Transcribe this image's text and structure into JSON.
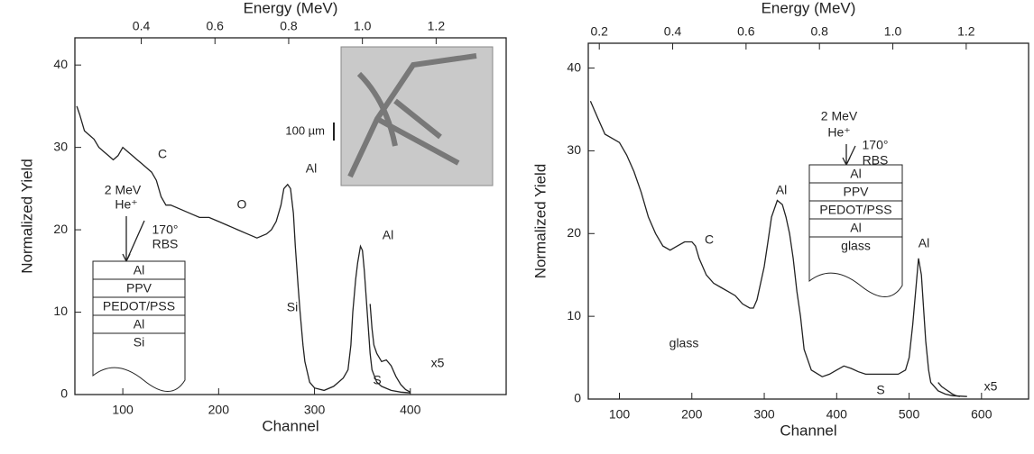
{
  "chart_data": [
    {
      "type": "line",
      "x_label": "Channel",
      "y_label": "Normalized Yield",
      "x2_label": "Energy (MeV)",
      "xlim": [
        50,
        500
      ],
      "xticks": [
        100,
        200,
        300,
        400
      ],
      "ylim": [
        0,
        43.3
      ],
      "yticks": [
        0,
        10,
        20,
        30,
        40
      ],
      "x2lim": [
        0.22,
        1.39
      ],
      "x2ticks": [
        0.4,
        0.6,
        0.8,
        {
          "value": 1,
          "label": "1.0"
        },
        1.2
      ],
      "series": [
        {
          "color": "#222",
          "x": [
            52,
            55,
            60,
            65,
            70,
            75,
            80,
            85,
            90,
            95,
            100,
            105,
            110,
            115,
            120,
            125,
            130,
            135,
            140,
            145,
            150,
            160,
            170,
            180,
            190,
            200,
            210,
            220,
            230,
            240,
            250,
            255,
            260,
            265,
            268,
            272,
            275,
            278,
            280,
            283,
            285,
            288,
            290,
            295,
            300,
            310,
            320,
            330,
            335,
            338,
            340,
            343,
            345,
            348,
            350,
            352,
            355,
            358,
            360,
            365,
            370,
            380,
            390,
            400
          ],
          "values": [
            35,
            34,
            32,
            31.5,
            31,
            30,
            29.5,
            29,
            28.5,
            29,
            30,
            29.5,
            29,
            28.5,
            28,
            27.5,
            27,
            26,
            24,
            23,
            23,
            22.5,
            22,
            21.5,
            21.5,
            21,
            20.5,
            20,
            19.5,
            19,
            19.5,
            20,
            21,
            23,
            25,
            25.5,
            25,
            22,
            18,
            13,
            10,
            6,
            4,
            1.5,
            0.8,
            0.5,
            1,
            2,
            3,
            6,
            10,
            14,
            16,
            18,
            17.5,
            15,
            10,
            5,
            3,
            1.5,
            1,
            0.5,
            0.3,
            0.2
          ]
        },
        {
          "color": "#222",
          "x": [
            358,
            360,
            362,
            365,
            370,
            375,
            380,
            385,
            390,
            395,
            400
          ],
          "values": [
            11,
            8,
            6,
            5,
            4,
            4.2,
            3.5,
            2.2,
            1.2,
            0.6,
            0.3
          ]
        }
      ],
      "annotations": [
        "C",
        "O",
        "Al",
        "Al",
        "Si",
        "S",
        "x5"
      ],
      "beam": [
        "2 MeV",
        "He⁺",
        "170°",
        "RBS"
      ],
      "layers": [
        "Al",
        "PPV",
        "PEDOT/PSS",
        "Al",
        "Si"
      ],
      "scale_bar": "100 µm"
    },
    {
      "type": "line",
      "x_label": "Channel",
      "y_label": "Normalized Yield",
      "x2_label": "Energy (MeV)",
      "xlim": [
        57,
        665
      ],
      "xticks": [
        100,
        200,
        300,
        400,
        500,
        600
      ],
      "ylim": [
        0,
        43
      ],
      "yticks": [
        0,
        10,
        20,
        30,
        40
      ],
      "x2lim": [
        0.17,
        1.37
      ],
      "x2ticks": [
        0.2,
        0.4,
        0.6,
        0.8,
        {
          "value": 1,
          "label": "1.0"
        },
        1.2
      ],
      "series": [
        {
          "color": "#222",
          "x": [
            60,
            65,
            70,
            80,
            90,
            100,
            110,
            120,
            130,
            140,
            150,
            160,
            170,
            180,
            190,
            200,
            205,
            210,
            220,
            230,
            240,
            250,
            260,
            270,
            280,
            285,
            290,
            295,
            300,
            305,
            310,
            318,
            325,
            330,
            335,
            340,
            345,
            350,
            355,
            365,
            380,
            390,
            400,
            410,
            420,
            430,
            440,
            455,
            470,
            485,
            495,
            500,
            505,
            510,
            513,
            517,
            520,
            523,
            527,
            530,
            540,
            550,
            560,
            580
          ],
          "values": [
            36,
            35,
            34,
            32,
            31.5,
            31,
            29.5,
            27.5,
            25,
            22,
            20,
            18.5,
            18,
            18.5,
            19,
            19,
            18.5,
            17,
            15,
            14,
            13.5,
            13,
            12.5,
            11.5,
            11,
            11,
            12,
            14,
            16,
            19,
            22,
            24,
            23.5,
            22,
            20,
            17,
            13,
            10,
            6,
            3.5,
            2.7,
            3,
            3.5,
            4,
            3.7,
            3.3,
            3,
            3,
            3,
            3,
            3.5,
            5,
            9,
            14,
            17,
            15,
            11,
            7,
            3.5,
            2,
            1,
            0.6,
            0.4,
            0.3
          ]
        },
        {
          "color": "#222",
          "x": [
            540,
            545,
            550,
            555,
            560,
            565,
            570
          ],
          "values": [
            2,
            1.5,
            1.2,
            0.9,
            0.6,
            0.4,
            0.3
          ]
        }
      ],
      "annotations": [
        "Al",
        "C",
        "Al",
        "glass",
        "S",
        "x5"
      ],
      "beam": [
        "2 MeV",
        "He⁺",
        "170°",
        "RBS"
      ],
      "layers": [
        "Al",
        "PPV",
        "PEDOT/PSS",
        "Al",
        "glass"
      ]
    }
  ]
}
